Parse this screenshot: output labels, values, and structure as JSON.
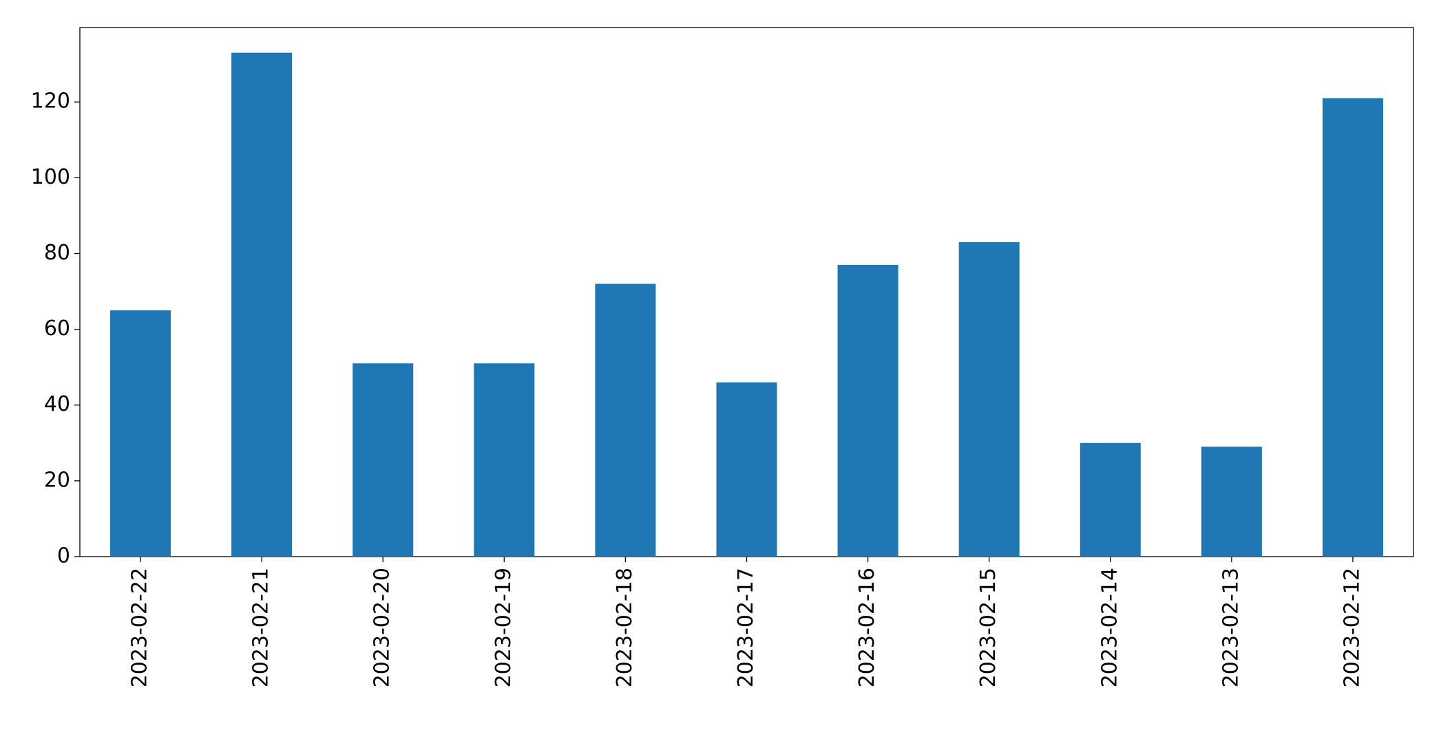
{
  "chart_data": {
    "type": "bar",
    "categories": [
      "2023-02-22",
      "2023-02-21",
      "2023-02-20",
      "2023-02-19",
      "2023-02-18",
      "2023-02-17",
      "2023-02-16",
      "2023-02-15",
      "2023-02-14",
      "2023-02-13",
      "2023-02-12"
    ],
    "values": [
      65,
      133,
      51,
      51,
      72,
      46,
      77,
      83,
      30,
      29,
      121
    ],
    "color": "#1f77b4",
    "ylim": [
      0,
      139.65
    ],
    "yticks": [
      0,
      20,
      40,
      60,
      80,
      100,
      120
    ],
    "grid": false
  }
}
